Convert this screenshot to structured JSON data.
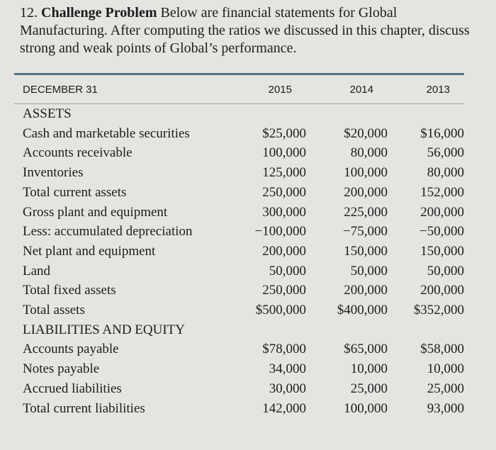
{
  "problem": {
    "number": "12.",
    "title": "Challenge Problem",
    "text": "Below are financial statements for Global Manufacturing. After computing the ratios we discussed in this chapter, discuss strong and weak points of Global’s performance."
  },
  "table": {
    "header": [
      "DECEMBER 31",
      "2015",
      "2014",
      "2013"
    ],
    "rows": [
      [
        "ASSETS"
      ],
      [
        "Cash and marketable securities",
        "$25,000",
        "$20,000",
        "$16,000"
      ],
      [
        "Accounts receivable",
        "100,000",
        "80,000",
        "56,000"
      ],
      [
        "Inventories",
        "125,000",
        "100,000",
        "80,000"
      ],
      [
        "Total current assets",
        "250,000",
        "200,000",
        "152,000"
      ],
      [
        "Gross plant and equipment",
        "300,000",
        "225,000",
        "200,000"
      ],
      [
        "Less: accumulated depreciation",
        "−100,000",
        "−75,000",
        "−50,000"
      ],
      [
        "Net plant and equipment",
        "200,000",
        "150,000",
        "150,000"
      ],
      [
        "Land",
        "50,000",
        "50,000",
        "50,000"
      ],
      [
        "Total fixed assets",
        "250,000",
        "200,000",
        "200,000"
      ],
      [
        "Total assets",
        "$500,000",
        "$400,000",
        "$352,000"
      ],
      [
        "LIABILITIES AND EQUITY"
      ],
      [
        "Accounts payable",
        "$78,000",
        "$65,000",
        "$58,000"
      ],
      [
        "Notes payable",
        "34,000",
        "10,000",
        "10,000"
      ],
      [
        "Accrued liabilities",
        "30,000",
        "25,000",
        "25,000"
      ],
      [
        "Total current liabilities",
        "142,000",
        "100,000",
        "93,000"
      ]
    ]
  }
}
